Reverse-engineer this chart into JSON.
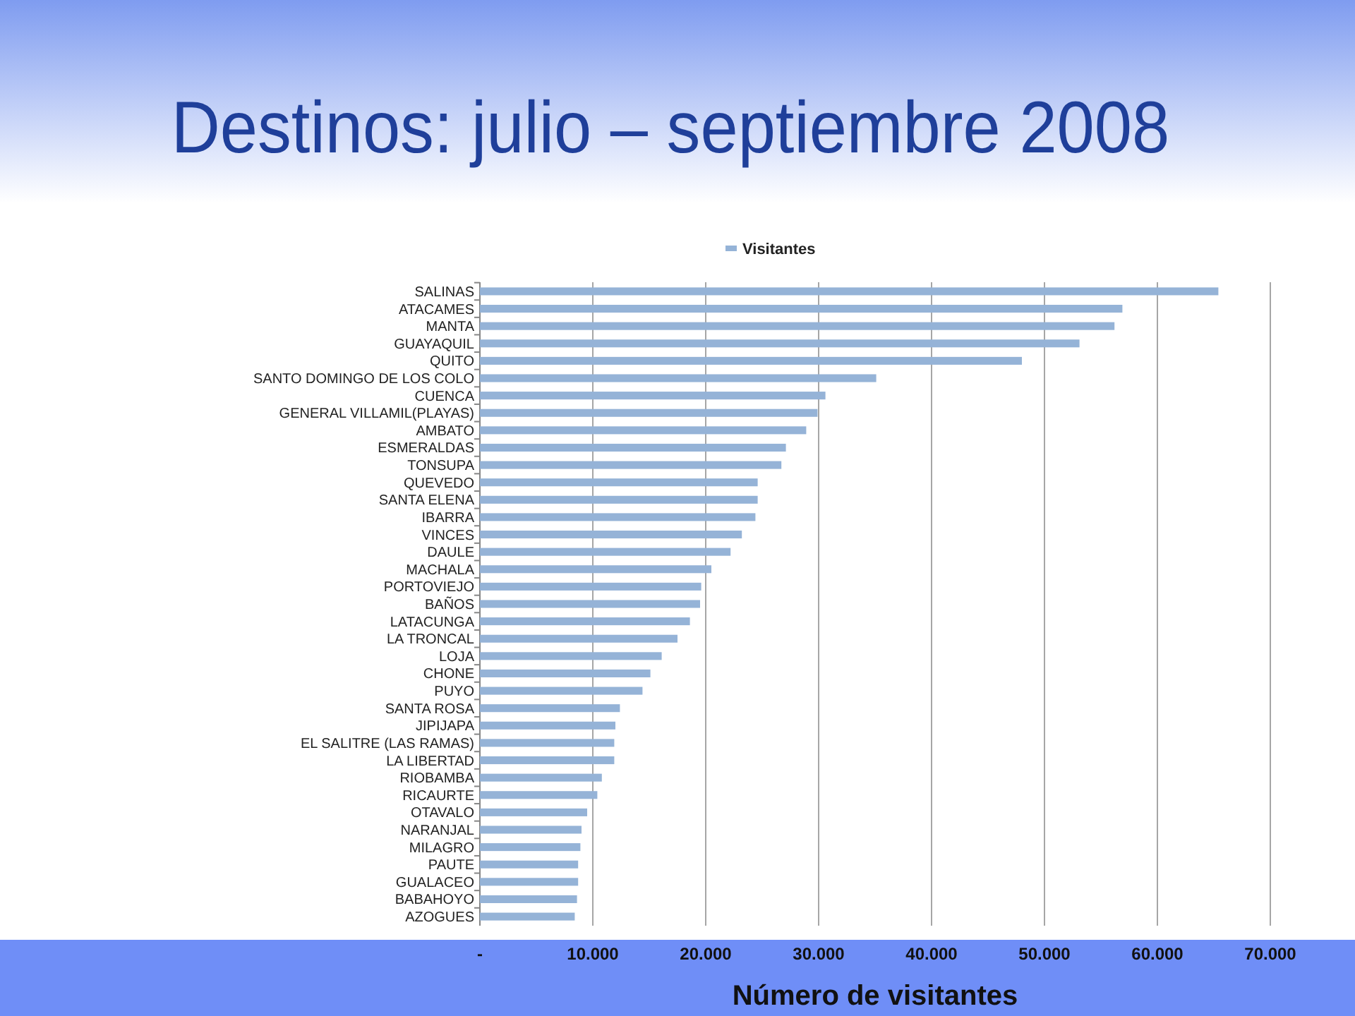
{
  "chart_data": {
    "type": "bar",
    "orientation": "horizontal",
    "title": "Destinos: julio – septiembre 2008",
    "xlabel": "Número de visitantes",
    "categories": [
      "SALINAS",
      "ATACAMES",
      "MANTA",
      "GUAYAQUIL",
      "QUITO",
      "SANTO DOMINGO DE LOS COLO",
      "CUENCA",
      "GENERAL VILLAMIL(PLAYAS)",
      "AMBATO",
      "ESMERALDAS",
      "TONSUPA",
      "QUEVEDO",
      "SANTA ELENA",
      "IBARRA",
      "VINCES",
      "DAULE",
      "MACHALA",
      "PORTOVIEJO",
      "BAÑOS",
      "LATACUNGA",
      "LA TRONCAL",
      "LOJA",
      "CHONE",
      "PUYO",
      "SANTA ROSA",
      "JIPIJAPA",
      "EL SALITRE (LAS RAMAS)",
      "LA LIBERTAD",
      "RIOBAMBA",
      "RICAURTE",
      "OTAVALO",
      "NARANJAL",
      "MILAGRO",
      "PAUTE",
      "GUALACEO",
      "BABAHOYO",
      "AZOGUES"
    ],
    "series": [
      {
        "name": "Visitantes",
        "color": "#95b3d7",
        "values": [
          65400,
          56900,
          56200,
          53100,
          48000,
          35100,
          30600,
          29900,
          28900,
          27100,
          26700,
          24600,
          24600,
          24400,
          23200,
          22200,
          20500,
          19600,
          19500,
          18600,
          17500,
          16100,
          15100,
          14400,
          12400,
          12000,
          11900,
          11900,
          10800,
          10400,
          9500,
          9000,
          8900,
          8700,
          8700,
          8600,
          8400
        ]
      }
    ],
    "xlim": [
      0,
      70000
    ],
    "xticks": [
      {
        "value": 0,
        "label": "-"
      },
      {
        "value": 10000,
        "label": "10.000"
      },
      {
        "value": 20000,
        "label": "20.000"
      },
      {
        "value": 30000,
        "label": "30.000"
      },
      {
        "value": 40000,
        "label": "40.000"
      },
      {
        "value": 50000,
        "label": "50.000"
      },
      {
        "value": 60000,
        "label": "60.000"
      },
      {
        "value": 70000,
        "label": "70.000"
      }
    ],
    "grid": "x",
    "legend": "top"
  }
}
